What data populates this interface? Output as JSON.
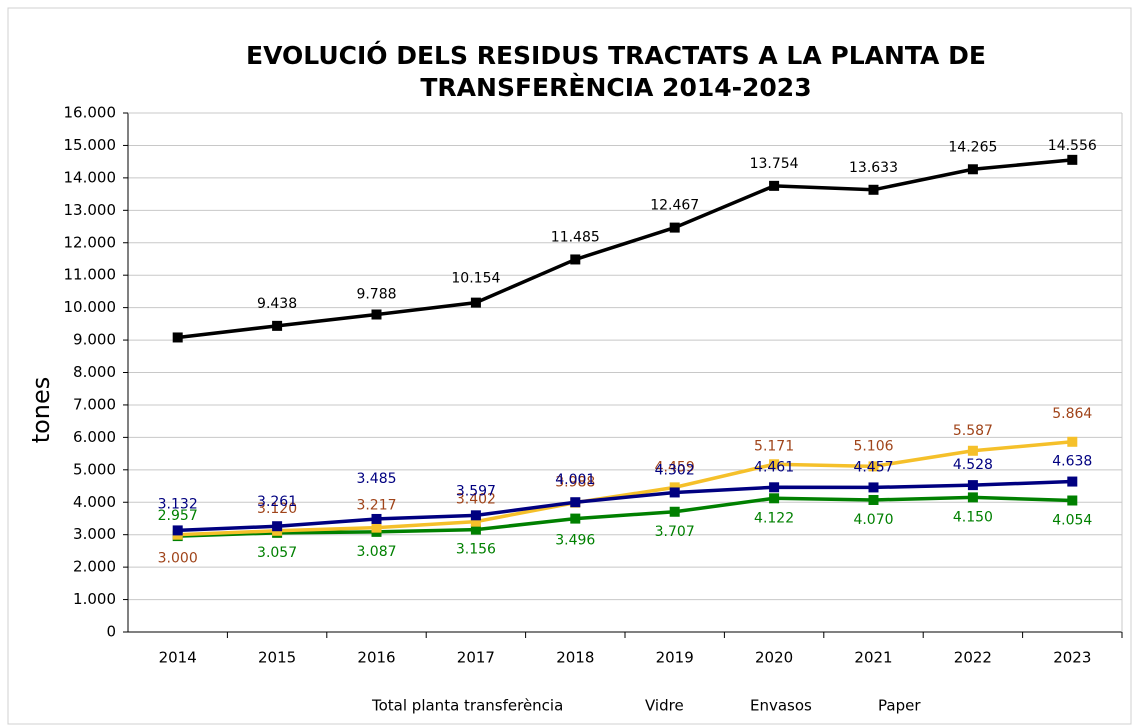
{
  "chart_data": {
    "type": "line",
    "title": [
      "EVOLUCIÓ DELS RESIDUS TRACTATS A LA PLANTA DE",
      "TRANSFERÈNCIA 2014-2023"
    ],
    "ylabel": "tones",
    "categories": [
      "2014",
      "2015",
      "2016",
      "2017",
      "2018",
      "2019",
      "2020",
      "2021",
      "2022",
      "2023"
    ],
    "series": [
      {
        "name": "Total planta transferència",
        "color": "#000000",
        "label_color": "#000000",
        "values": [
          9080,
          9438,
          9788,
          10154,
          11485,
          12467,
          13754,
          13633,
          14265,
          14556
        ],
        "value_labels": [
          null,
          "9.438",
          "9.788",
          "10.154",
          "11.485",
          "12.467",
          "13.754",
          "13.633",
          "14.265",
          "14.556"
        ]
      },
      {
        "name": "Vidre",
        "color": "#008000",
        "label_color": "#008000",
        "values": [
          2957,
          3057,
          3087,
          3156,
          3496,
          3707,
          4122,
          4070,
          4150,
          4054
        ],
        "value_labels": [
          "2.957",
          "3.057",
          "3.087",
          "3.156",
          "3.496",
          "3.707",
          "4.122",
          "4.070",
          "4.150",
          "4.054"
        ]
      },
      {
        "name": "Envasos",
        "color": "#f5c02a",
        "label_color": "#a0441a",
        "values": [
          3000,
          3120,
          3217,
          3402,
          3988,
          4459,
          5171,
          5106,
          5587,
          5864
        ],
        "value_labels": [
          "3.000",
          "3.120",
          "3.217",
          "3.402",
          "3.988",
          "4.459",
          "5.171",
          "5.106",
          "5.587",
          "5.864"
        ]
      },
      {
        "name": "Paper",
        "color": "#000080",
        "label_color": "#000080",
        "values": [
          3132,
          3261,
          3485,
          3597,
          4001,
          4302,
          4461,
          4457,
          4528,
          4638
        ],
        "value_labels": [
          "3.132",
          "3.261",
          "3.485",
          "3.597",
          "4.001",
          "4.302",
          "4.461",
          "4.457",
          "4.528",
          "4.638"
        ]
      }
    ],
    "ylim": [
      0,
      16000
    ],
    "yticks": [
      0,
      {
        "value": 1000,
        "label": "1.000"
      },
      {
        "value": 2000,
        "label": "2.000"
      },
      {
        "value": 3000,
        "label": "3.000"
      },
      {
        "value": 4000,
        "label": "4.000"
      },
      {
        "value": 5000,
        "label": "5.000"
      },
      {
        "value": 6000,
        "label": "6.000"
      },
      {
        "value": 7000,
        "label": "7.000"
      },
      {
        "value": 8000,
        "label": "8.000"
      },
      {
        "value": 9000,
        "label": "9.000"
      },
      {
        "value": 10000,
        "label": "10.000"
      },
      {
        "value": 11000,
        "label": "11.000"
      },
      {
        "value": 12000,
        "label": "12.000"
      },
      {
        "value": 13000,
        "label": "13.000"
      },
      {
        "value": 14000,
        "label": "14.000"
      },
      {
        "value": 15000,
        "label": "15.000"
      },
      {
        "value": 16000,
        "label": "16.000"
      }
    ],
    "grid": true
  }
}
